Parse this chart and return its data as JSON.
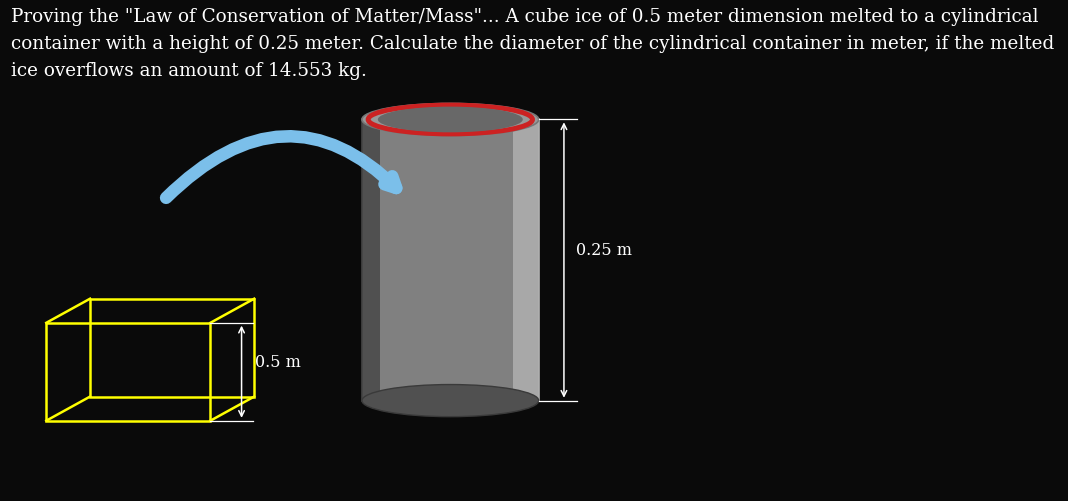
{
  "background_color": "#0a0a0a",
  "text_color": "#ffffff",
  "title_text": "Proving the \"Law of Conservation of Matter/Mass\"... A cube ice of 0.5 meter dimension melted to a cylindrical\ncontainer with a height of 0.25 meter. Calculate the diameter of the cylindrical container in meter, if the melted\nice overflows an amount of 14.553 kg.",
  "title_fontsize": 13.2,
  "cube_color": "#ffff00",
  "dim_label_05": "0.5 m",
  "dim_label_025": "0.25 m",
  "arrow_color": "#7bbfea",
  "cylinder_body_color": "#888888",
  "cylinder_dark": "#555555",
  "cylinder_light": "#aaaaaa",
  "cylinder_rim_color": "#cc2222",
  "dim_arrow_color": "#ffffff"
}
